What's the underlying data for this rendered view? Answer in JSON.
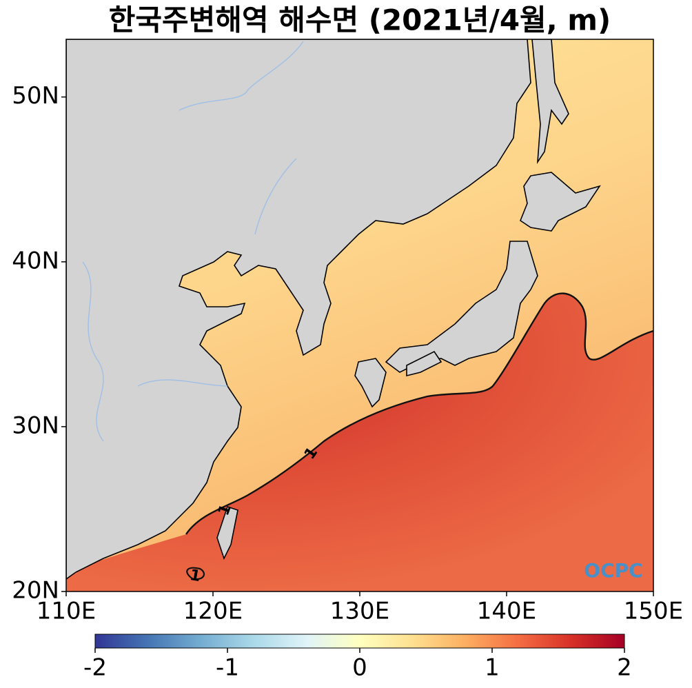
{
  "title": "한국주변해역 해수면 (2021년/4월, m)",
  "map": {
    "xlim": [
      110,
      150
    ],
    "ylim": [
      20,
      53.5
    ],
    "xticks": [
      {
        "value": 110,
        "label": "110E"
      },
      {
        "value": 120,
        "label": "120E"
      },
      {
        "value": 130,
        "label": "130E"
      },
      {
        "value": 140,
        "label": "140E"
      },
      {
        "value": 150,
        "label": "150E"
      }
    ],
    "yticks": [
      {
        "value": 20,
        "label": "20N"
      },
      {
        "value": 30,
        "label": "30N"
      },
      {
        "value": 40,
        "label": "40N"
      },
      {
        "value": 50,
        "label": "50N"
      }
    ],
    "contour_labels": [
      "1",
      "1",
      "1"
    ],
    "logo": "OCPC"
  },
  "colorbar": {
    "lim": [
      -2,
      2
    ],
    "ticks": [
      -2,
      -1,
      0,
      1,
      2
    ]
  }
}
